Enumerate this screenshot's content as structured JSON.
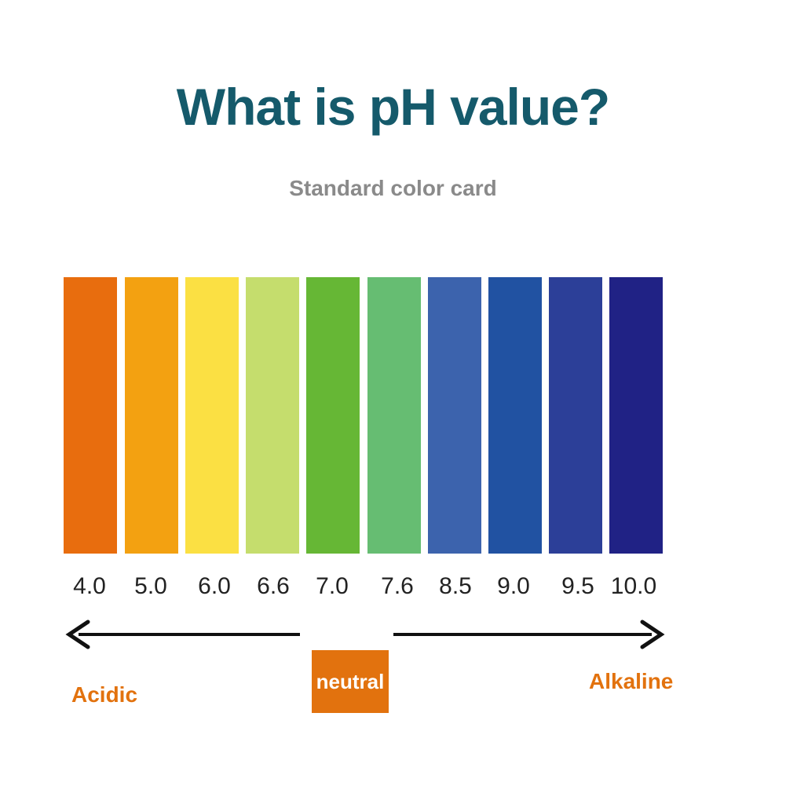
{
  "header": {
    "title": "What is pH value?",
    "subtitle": "Standard color card"
  },
  "scale": [
    {
      "value": "4.0",
      "color": "#e86d0e"
    },
    {
      "value": "5.0",
      "color": "#f3a111"
    },
    {
      "value": "6.0",
      "color": "#fbe043"
    },
    {
      "value": "6.6",
      "color": "#c5dd6d"
    },
    {
      "value": "7.0",
      "color": "#66b735"
    },
    {
      "value": "7.6",
      "color": "#66bd72"
    },
    {
      "value": "8.5",
      "color": "#3c63ad"
    },
    {
      "value": "9.0",
      "color": "#2152a2"
    },
    {
      "value": "9.5",
      "color": "#2c3f98"
    },
    {
      "value": "10.0",
      "color": "#202285"
    }
  ],
  "labels": {
    "acidic": "Acidic",
    "neutral": "neutral",
    "alkaline": "Alkaline"
  },
  "colors": {
    "title": "#155a6b",
    "subtitle": "#8a8a8a",
    "label_orange": "#e2720e",
    "neutral_box": "#e2720e",
    "arrow": "#111111"
  }
}
